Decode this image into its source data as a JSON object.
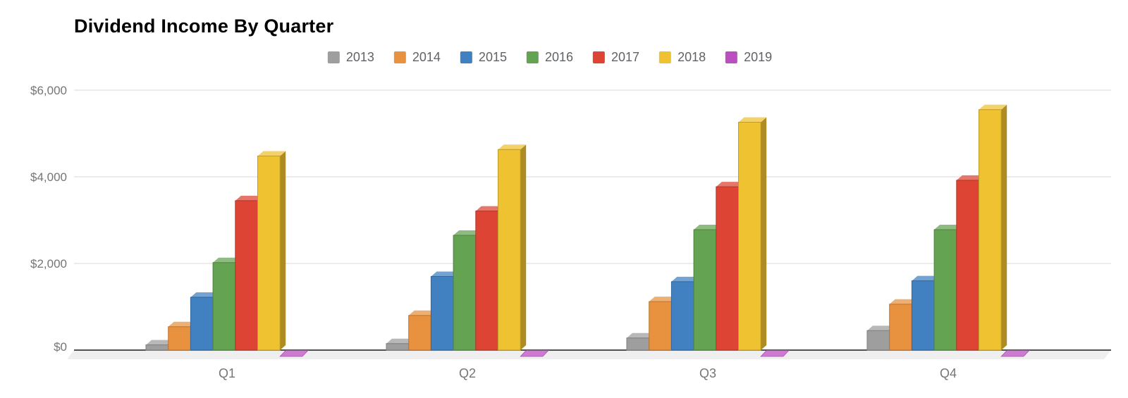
{
  "header": {
    "title": "Dividend Income By Quarter"
  },
  "colors": {
    "grid": "#dadada",
    "axis": "#1c1c1c",
    "floor": "#efefef",
    "tick_text": "#757575",
    "legend_text": "#5f6368",
    "title_text": "#000000"
  },
  "chart_data": {
    "type": "bar",
    "style": "3d-column-grouped",
    "title": "Dividend Income By Quarter",
    "xlabel": "",
    "ylabel": "",
    "categories": [
      "Q1",
      "Q2",
      "Q3",
      "Q4"
    ],
    "series": [
      {
        "name": "2013",
        "color": "#9e9e9e",
        "values": [
          120,
          150,
          280,
          450
        ]
      },
      {
        "name": "2014",
        "color": "#e8913e",
        "values": [
          540,
          800,
          1120,
          1060
        ]
      },
      {
        "name": "2015",
        "color": "#4180c1",
        "values": [
          1220,
          1700,
          1580,
          1600
        ]
      },
      {
        "name": "2016",
        "color": "#64a351",
        "values": [
          2020,
          2650,
          2780,
          2780
        ]
      },
      {
        "name": "2017",
        "color": "#dd4433",
        "values": [
          3450,
          3210,
          3770,
          3920
        ]
      },
      {
        "name": "2018",
        "color": "#efc231",
        "values": [
          4480,
          4630,
          5260,
          5550
        ]
      },
      {
        "name": "2019",
        "color": "#bb4fc0",
        "values": [
          0,
          0,
          0,
          0
        ]
      }
    ],
    "yticks": [
      {
        "value": 0,
        "label": "$0"
      },
      {
        "value": 2000,
        "label": "$2,000"
      },
      {
        "value": 4000,
        "label": "$4,000"
      },
      {
        "value": 6000,
        "label": "$6,000"
      }
    ],
    "ylim": [
      0,
      6000
    ],
    "grid": true,
    "legend_position": "top"
  }
}
